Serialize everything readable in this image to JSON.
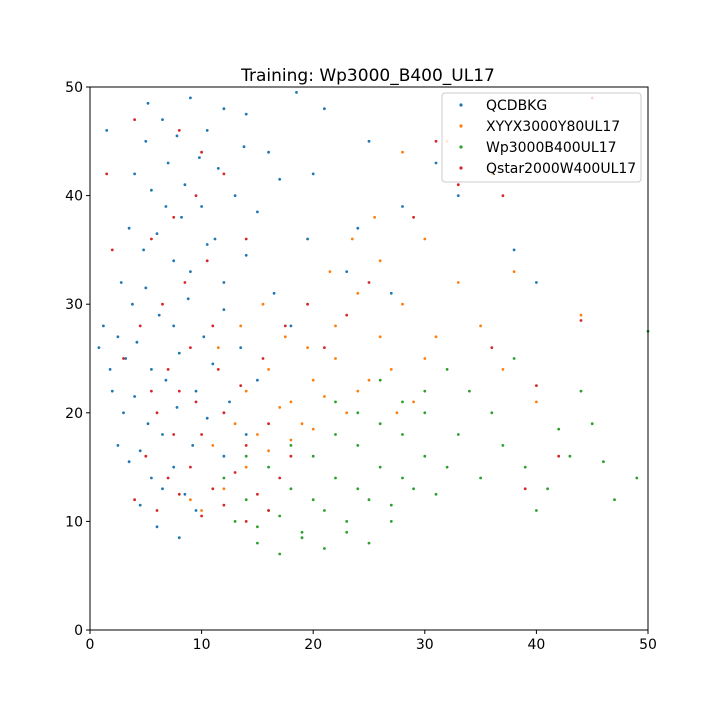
{
  "chart_data": {
    "type": "scatter",
    "title": "Training: Wp3000_B400_UL17",
    "xlabel": "",
    "ylabel": "",
    "xlim": [
      0,
      50
    ],
    "ylim": [
      0,
      50
    ],
    "xticks": [
      0,
      10,
      20,
      30,
      40,
      50
    ],
    "yticks": [
      0,
      10,
      20,
      30,
      40,
      50
    ],
    "grid": false,
    "legend_position": "top-right",
    "series": [
      {
        "name": "QCDBKG",
        "color": "#1f77b4",
        "points": [
          [
            5.2,
            48.5
          ],
          [
            6.5,
            47.0
          ],
          [
            7.8,
            45.5
          ],
          [
            9.0,
            49.0
          ],
          [
            10.5,
            46.0
          ],
          [
            12.0,
            48.0
          ],
          [
            14.0,
            47.5
          ],
          [
            16.0,
            44.0
          ],
          [
            18.5,
            49.5
          ],
          [
            21.0,
            48.0
          ],
          [
            4.0,
            42.0
          ],
          [
            5.5,
            40.5
          ],
          [
            7.0,
            43.0
          ],
          [
            8.5,
            41.0
          ],
          [
            10.0,
            39.0
          ],
          [
            11.5,
            42.5
          ],
          [
            13.0,
            40.0
          ],
          [
            15.0,
            38.5
          ],
          [
            17.0,
            41.5
          ],
          [
            19.5,
            36.0
          ],
          [
            3.5,
            37.0
          ],
          [
            4.8,
            35.0
          ],
          [
            6.0,
            36.5
          ],
          [
            7.5,
            34.0
          ],
          [
            9.0,
            33.0
          ],
          [
            10.5,
            35.5
          ],
          [
            12.0,
            32.0
          ],
          [
            14.0,
            34.5
          ],
          [
            16.5,
            31.0
          ],
          [
            23.0,
            33.0
          ],
          [
            2.8,
            32.0
          ],
          [
            3.8,
            30.0
          ],
          [
            5.0,
            31.5
          ],
          [
            6.2,
            29.0
          ],
          [
            7.5,
            28.0
          ],
          [
            8.8,
            30.5
          ],
          [
            10.2,
            27.0
          ],
          [
            12.0,
            29.5
          ],
          [
            13.5,
            26.0
          ],
          [
            18.0,
            28.0
          ],
          [
            2.5,
            27.0
          ],
          [
            3.2,
            25.0
          ],
          [
            4.2,
            26.5
          ],
          [
            5.5,
            24.0
          ],
          [
            6.8,
            23.0
          ],
          [
            8.0,
            25.5
          ],
          [
            9.5,
            22.0
          ],
          [
            11.0,
            24.5
          ],
          [
            12.5,
            21.0
          ],
          [
            15.0,
            23.0
          ],
          [
            2.0,
            22.0
          ],
          [
            3.0,
            20.0
          ],
          [
            4.0,
            21.5
          ],
          [
            5.2,
            19.0
          ],
          [
            6.5,
            18.0
          ],
          [
            7.8,
            20.5
          ],
          [
            9.2,
            17.0
          ],
          [
            10.5,
            19.5
          ],
          [
            12.0,
            16.0
          ],
          [
            14.0,
            18.0
          ],
          [
            2.5,
            17.0
          ],
          [
            3.5,
            15.5
          ],
          [
            4.5,
            16.5
          ],
          [
            5.5,
            14.0
          ],
          [
            6.5,
            13.0
          ],
          [
            7.5,
            15.0
          ],
          [
            8.5,
            12.5
          ],
          [
            9.5,
            11.0
          ],
          [
            6.0,
            9.5
          ],
          [
            8.0,
            8.5
          ],
          [
            1.5,
            46.0
          ],
          [
            20.0,
            42.0
          ],
          [
            25.0,
            45.0
          ],
          [
            28.0,
            39.0
          ],
          [
            33.0,
            40.0
          ],
          [
            38.0,
            35.0
          ],
          [
            40.0,
            32.0
          ],
          [
            31.0,
            43.0
          ],
          [
            27.0,
            31.0
          ],
          [
            24.0,
            37.0
          ],
          [
            1.2,
            28.0
          ],
          [
            1.8,
            24.0
          ],
          [
            0.8,
            26.0
          ],
          [
            4.5,
            11.5
          ],
          [
            5.0,
            45.0
          ],
          [
            8.2,
            38.0
          ],
          [
            11.2,
            36.0
          ],
          [
            13.8,
            44.5
          ],
          [
            9.8,
            43.5
          ],
          [
            6.8,
            39.0
          ]
        ]
      },
      {
        "name": "XYYX3000Y80UL17",
        "color": "#ff7f0e",
        "points": [
          [
            12.0,
            20.0
          ],
          [
            14.0,
            22.0
          ],
          [
            16.0,
            24.0
          ],
          [
            18.0,
            21.0
          ],
          [
            20.0,
            23.0
          ],
          [
            22.0,
            25.0
          ],
          [
            24.0,
            22.0
          ],
          [
            26.0,
            27.0
          ],
          [
            28.0,
            30.0
          ],
          [
            30.0,
            25.0
          ],
          [
            11.0,
            17.0
          ],
          [
            13.0,
            19.0
          ],
          [
            15.0,
            18.0
          ],
          [
            17.0,
            20.5
          ],
          [
            19.0,
            19.0
          ],
          [
            21.0,
            21.5
          ],
          [
            23.0,
            20.0
          ],
          [
            25.0,
            23.0
          ],
          [
            27.0,
            24.0
          ],
          [
            29.0,
            21.0
          ],
          [
            9.0,
            12.0
          ],
          [
            10.0,
            11.0
          ],
          [
            12.0,
            13.0
          ],
          [
            14.0,
            15.0
          ],
          [
            16.0,
            16.5
          ],
          [
            18.0,
            17.5
          ],
          [
            20.0,
            18.5
          ],
          [
            22.0,
            28.0
          ],
          [
            24.0,
            31.0
          ],
          [
            26.0,
            34.0
          ],
          [
            30.0,
            36.0
          ],
          [
            33.0,
            32.0
          ],
          [
            35.0,
            28.0
          ],
          [
            37.0,
            24.0
          ],
          [
            38.0,
            33.0
          ],
          [
            44.0,
            29.0
          ],
          [
            32.0,
            45.0
          ],
          [
            28.0,
            44.0
          ],
          [
            36.0,
            42.0
          ],
          [
            40.0,
            21.0
          ],
          [
            11.5,
            26.0
          ],
          [
            13.5,
            28.0
          ],
          [
            15.5,
            30.0
          ],
          [
            17.5,
            27.0
          ],
          [
            19.5,
            26.0
          ],
          [
            21.5,
            33.0
          ],
          [
            23.5,
            36.0
          ],
          [
            25.5,
            38.0
          ],
          [
            27.5,
            20.0
          ],
          [
            31.0,
            27.0
          ]
        ]
      },
      {
        "name": "Wp3000B400UL17",
        "color": "#2ca02c",
        "points": [
          [
            14.0,
            12.0
          ],
          [
            16.0,
            11.0
          ],
          [
            18.0,
            13.0
          ],
          [
            20.0,
            12.0
          ],
          [
            22.0,
            14.0
          ],
          [
            24.0,
            13.0
          ],
          [
            26.0,
            15.0
          ],
          [
            28.0,
            14.0
          ],
          [
            30.0,
            16.0
          ],
          [
            32.0,
            15.0
          ],
          [
            13.0,
            10.0
          ],
          [
            15.0,
            9.5
          ],
          [
            17.0,
            10.5
          ],
          [
            19.0,
            9.0
          ],
          [
            21.0,
            11.0
          ],
          [
            23.0,
            10.0
          ],
          [
            25.0,
            12.0
          ],
          [
            27.0,
            11.5
          ],
          [
            29.0,
            13.0
          ],
          [
            31.0,
            12.5
          ],
          [
            12.0,
            14.0
          ],
          [
            14.0,
            16.0
          ],
          [
            16.0,
            15.0
          ],
          [
            18.0,
            17.0
          ],
          [
            20.0,
            16.0
          ],
          [
            22.0,
            18.0
          ],
          [
            24.0,
            17.0
          ],
          [
            26.0,
            19.0
          ],
          [
            28.0,
            18.0
          ],
          [
            30.0,
            20.0
          ],
          [
            15.0,
            8.0
          ],
          [
            17.0,
            7.0
          ],
          [
            19.0,
            8.5
          ],
          [
            21.0,
            7.5
          ],
          [
            23.0,
            9.0
          ],
          [
            25.0,
            8.0
          ],
          [
            27.0,
            10.0
          ],
          [
            33.0,
            18.0
          ],
          [
            35.0,
            14.0
          ],
          [
            37.0,
            17.0
          ],
          [
            39.0,
            15.0
          ],
          [
            41.0,
            13.0
          ],
          [
            43.0,
            16.0
          ],
          [
            45.0,
            19.0
          ],
          [
            47.0,
            12.0
          ],
          [
            49.0,
            14.0
          ],
          [
            50.0,
            27.5
          ],
          [
            34.0,
            22.0
          ],
          [
            36.0,
            20.0
          ],
          [
            38.0,
            25.0
          ],
          [
            40.0,
            11.0
          ],
          [
            42.0,
            18.5
          ],
          [
            44.0,
            22.0
          ],
          [
            46.0,
            15.5
          ],
          [
            32.0,
            24.0
          ],
          [
            30.0,
            22.0
          ],
          [
            28.0,
            21.0
          ],
          [
            26.0,
            23.0
          ],
          [
            24.0,
            20.0
          ],
          [
            22.0,
            21.0
          ]
        ]
      },
      {
        "name": "Qstar2000W400UL17",
        "color": "#d62728",
        "points": [
          [
            6.0,
            20.0
          ],
          [
            8.0,
            22.0
          ],
          [
            10.0,
            18.0
          ],
          [
            12.0,
            20.0
          ],
          [
            14.0,
            17.0
          ],
          [
            16.0,
            19.0
          ],
          [
            18.0,
            16.0
          ],
          [
            7.0,
            24.0
          ],
          [
            9.0,
            26.0
          ],
          [
            11.0,
            28.0
          ],
          [
            5.0,
            16.0
          ],
          [
            7.0,
            14.0
          ],
          [
            9.0,
            15.0
          ],
          [
            11.0,
            13.0
          ],
          [
            13.0,
            14.5
          ],
          [
            15.0,
            12.5
          ],
          [
            17.0,
            14.0
          ],
          [
            6.5,
            30.0
          ],
          [
            8.5,
            32.0
          ],
          [
            10.5,
            34.0
          ],
          [
            4.0,
            12.0
          ],
          [
            6.0,
            11.0
          ],
          [
            8.0,
            12.5
          ],
          [
            10.0,
            10.5
          ],
          [
            12.0,
            11.5
          ],
          [
            14.0,
            10.0
          ],
          [
            16.0,
            11.0
          ],
          [
            5.5,
            36.0
          ],
          [
            7.5,
            38.0
          ],
          [
            9.5,
            40.0
          ],
          [
            3.0,
            25.0
          ],
          [
            4.5,
            28.0
          ],
          [
            5.5,
            22.0
          ],
          [
            7.5,
            18.0
          ],
          [
            9.5,
            21.0
          ],
          [
            11.5,
            24.0
          ],
          [
            13.5,
            22.5
          ],
          [
            15.5,
            25.0
          ],
          [
            17.5,
            28.0
          ],
          [
            19.5,
            30.0
          ],
          [
            1.5,
            42.0
          ],
          [
            2.0,
            35.0
          ],
          [
            4.0,
            47.0
          ],
          [
            8.0,
            46.0
          ],
          [
            10.0,
            44.0
          ],
          [
            12.0,
            42.0
          ],
          [
            14.0,
            36.0
          ],
          [
            21.0,
            26.0
          ],
          [
            23.0,
            29.0
          ],
          [
            25.0,
            32.0
          ],
          [
            29.0,
            38.0
          ],
          [
            33.0,
            41.0
          ],
          [
            37.0,
            40.0
          ],
          [
            44.0,
            28.5
          ],
          [
            45.0,
            49.0
          ],
          [
            40.0,
            22.5
          ],
          [
            42.0,
            16.0
          ],
          [
            39.0,
            13.0
          ],
          [
            31.0,
            45.0
          ],
          [
            36.0,
            26.0
          ]
        ]
      }
    ]
  }
}
